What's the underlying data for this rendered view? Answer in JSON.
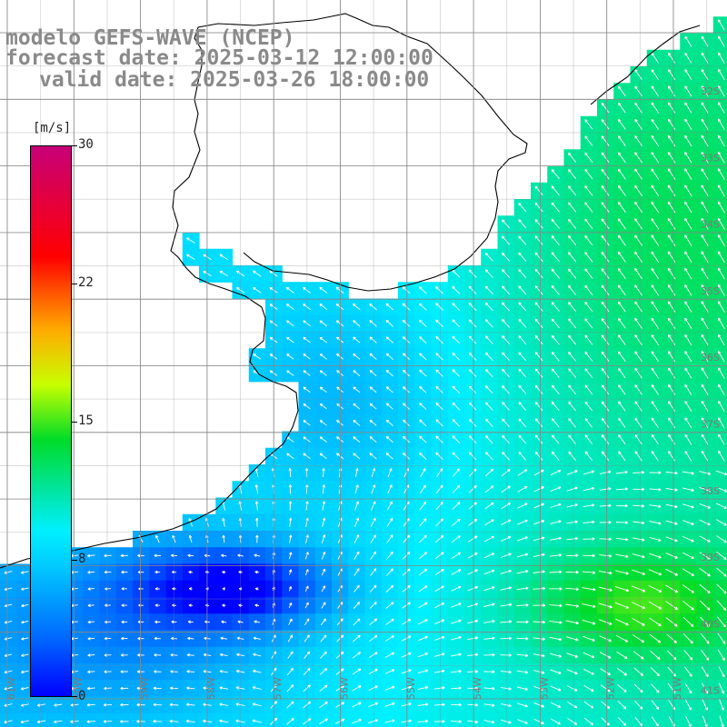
{
  "title": {
    "line1": "modelo GEFS-WAVE (NCEP)",
    "line2": "forecast date: 2025-03-12 12:00:00",
    "line3": "valid date: 2025-03-26 18:00:00"
  },
  "colorbar": {
    "unit": "[m/s]",
    "ticks": [
      {
        "label": "30",
        "value": 30
      },
      {
        "label": "22",
        "value": 22
      },
      {
        "label": "15",
        "value": 15
      },
      {
        "label": "8",
        "value": 8
      },
      {
        "label": "0",
        "value": 0
      }
    ],
    "colors": [
      "#0000ff",
      "#0088ff",
      "#00f0ff",
      "#00e0a0",
      "#00dd00",
      "#f0ff00",
      "#ff8800",
      "#ff0000",
      "#ff0060",
      "#cc0077"
    ]
  },
  "lat_labels": [
    "32S",
    "33S",
    "34S",
    "35S",
    "36S",
    "37S",
    "38S",
    "39S",
    "40S",
    "41S"
  ],
  "lon_labels": [
    "61W",
    "60W",
    "59W",
    "58W",
    "57W",
    "56W",
    "55W",
    "54W",
    "53W",
    "52W",
    "51W"
  ],
  "map": {
    "variable": "wind speed",
    "units": "m/s",
    "land_color": "#ffffff",
    "coastline_color": "#000000",
    "grid_color": "#888888"
  }
}
